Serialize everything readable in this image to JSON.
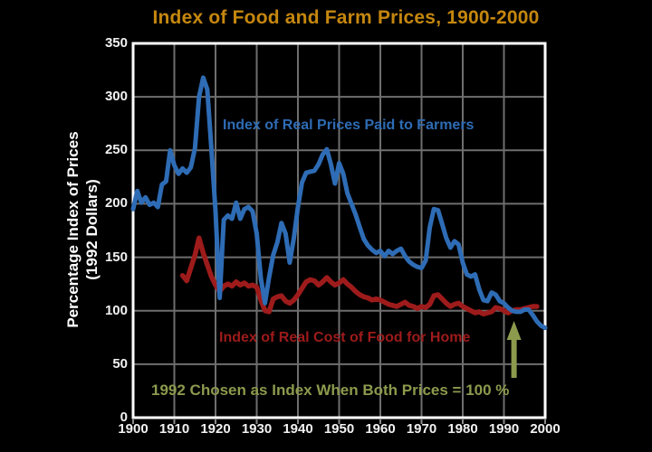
{
  "colors": {
    "background": "#000000",
    "title": "#C5870E",
    "tick_text": "#F2F2F2",
    "grid": "#6E6E6E",
    "frame": "#FFFFFF",
    "farm_series": "#2E6CB5",
    "food_series": "#9E1B1B",
    "annotation_green": "#8C9A4D"
  },
  "chart_data": {
    "type": "line",
    "title": "Index of Food and Farm Prices, 1900-2000",
    "grid": true,
    "x_axis": {
      "range": [
        1900,
        2000
      ],
      "ticks": [
        1900,
        1910,
        1920,
        1930,
        1940,
        1950,
        1960,
        1970,
        1980,
        1990,
        2000
      ]
    },
    "y_axis": {
      "range": [
        0,
        350
      ],
      "ticks": [
        0,
        50,
        100,
        150,
        200,
        250,
        300,
        350
      ],
      "title_line1": "Percentage Index of Prices",
      "title_line2": "(1992 Dollars)"
    },
    "series": [
      {
        "name": "Index of Real Prices Paid to Farmers",
        "color": "#2E6CB5",
        "points": [
          [
            1900,
            195
          ],
          [
            1901,
            212
          ],
          [
            1902,
            201
          ],
          [
            1903,
            206
          ],
          [
            1904,
            199
          ],
          [
            1905,
            201
          ],
          [
            1906,
            197
          ],
          [
            1907,
            218
          ],
          [
            1908,
            221
          ],
          [
            1909,
            250
          ],
          [
            1910,
            236
          ],
          [
            1911,
            228
          ],
          [
            1912,
            233
          ],
          [
            1913,
            229
          ],
          [
            1914,
            234
          ],
          [
            1915,
            252
          ],
          [
            1916,
            300
          ],
          [
            1917,
            318
          ],
          [
            1918,
            307
          ],
          [
            1919,
            252
          ],
          [
            1920,
            193
          ],
          [
            1921,
            112
          ],
          [
            1922,
            185
          ],
          [
            1923,
            189
          ],
          [
            1924,
            186
          ],
          [
            1925,
            201
          ],
          [
            1926,
            186
          ],
          [
            1927,
            195
          ],
          [
            1928,
            197
          ],
          [
            1929,
            193
          ],
          [
            1930,
            172
          ],
          [
            1931,
            130
          ],
          [
            1932,
            107
          ],
          [
            1933,
            131
          ],
          [
            1934,
            152
          ],
          [
            1935,
            164
          ],
          [
            1936,
            182
          ],
          [
            1937,
            172
          ],
          [
            1938,
            145
          ],
          [
            1939,
            168
          ],
          [
            1940,
            197
          ],
          [
            1941,
            220
          ],
          [
            1942,
            229
          ],
          [
            1943,
            230
          ],
          [
            1944,
            231
          ],
          [
            1945,
            237
          ],
          [
            1946,
            246
          ],
          [
            1947,
            251
          ],
          [
            1948,
            237
          ],
          [
            1949,
            219
          ],
          [
            1950,
            238
          ],
          [
            1951,
            228
          ],
          [
            1952,
            210
          ],
          [
            1953,
            200
          ],
          [
            1954,
            190
          ],
          [
            1955,
            178
          ],
          [
            1956,
            167
          ],
          [
            1957,
            161
          ],
          [
            1958,
            157
          ],
          [
            1959,
            154
          ],
          [
            1960,
            156
          ],
          [
            1961,
            151
          ],
          [
            1962,
            156
          ],
          [
            1963,
            153
          ],
          [
            1964,
            156
          ],
          [
            1965,
            158
          ],
          [
            1966,
            151
          ],
          [
            1967,
            146
          ],
          [
            1968,
            143
          ],
          [
            1969,
            141
          ],
          [
            1970,
            140
          ],
          [
            1971,
            147
          ],
          [
            1972,
            178
          ],
          [
            1973,
            195
          ],
          [
            1974,
            194
          ],
          [
            1975,
            181
          ],
          [
            1976,
            168
          ],
          [
            1977,
            159
          ],
          [
            1978,
            165
          ],
          [
            1979,
            162
          ],
          [
            1980,
            145
          ],
          [
            1981,
            134
          ],
          [
            1982,
            132
          ],
          [
            1983,
            134
          ],
          [
            1984,
            120
          ],
          [
            1985,
            110
          ],
          [
            1986,
            109
          ],
          [
            1987,
            117
          ],
          [
            1988,
            115
          ],
          [
            1989,
            109
          ],
          [
            1990,
            107
          ],
          [
            1991,
            103
          ],
          [
            1992,
            100
          ],
          [
            1993,
            99
          ],
          [
            1994,
            99
          ],
          [
            1995,
            101
          ],
          [
            1996,
            101
          ],
          [
            1997,
            96
          ],
          [
            1998,
            90
          ],
          [
            1999,
            86
          ],
          [
            2000,
            84
          ]
        ]
      },
      {
        "name": "Index of Real Cost of Food for Home",
        "color": "#9E1B1B",
        "points": [
          [
            1912,
            133
          ],
          [
            1913,
            128
          ],
          [
            1914,
            140
          ],
          [
            1915,
            152
          ],
          [
            1916,
            168
          ],
          [
            1917,
            154
          ],
          [
            1918,
            143
          ],
          [
            1919,
            132
          ],
          [
            1920,
            124
          ],
          [
            1921,
            118
          ],
          [
            1922,
            123
          ],
          [
            1923,
            125
          ],
          [
            1924,
            123
          ],
          [
            1925,
            127
          ],
          [
            1926,
            124
          ],
          [
            1927,
            126
          ],
          [
            1928,
            123
          ],
          [
            1929,
            124
          ],
          [
            1930,
            122
          ],
          [
            1931,
            110
          ],
          [
            1932,
            100
          ],
          [
            1933,
            99
          ],
          [
            1934,
            111
          ],
          [
            1935,
            113
          ],
          [
            1936,
            114
          ],
          [
            1937,
            109
          ],
          [
            1938,
            107
          ],
          [
            1939,
            110
          ],
          [
            1940,
            115
          ],
          [
            1941,
            121
          ],
          [
            1942,
            127
          ],
          [
            1943,
            129
          ],
          [
            1944,
            128
          ],
          [
            1945,
            124
          ],
          [
            1946,
            127
          ],
          [
            1947,
            131
          ],
          [
            1948,
            127
          ],
          [
            1949,
            124
          ],
          [
            1950,
            126
          ],
          [
            1951,
            129
          ],
          [
            1952,
            125
          ],
          [
            1953,
            122
          ],
          [
            1954,
            118
          ],
          [
            1955,
            115
          ],
          [
            1956,
            113
          ],
          [
            1957,
            112
          ],
          [
            1958,
            110
          ],
          [
            1959,
            111
          ],
          [
            1960,
            110
          ],
          [
            1961,
            108
          ],
          [
            1962,
            106
          ],
          [
            1963,
            105
          ],
          [
            1964,
            104
          ],
          [
            1965,
            106
          ],
          [
            1966,
            108
          ],
          [
            1967,
            105
          ],
          [
            1968,
            104
          ],
          [
            1969,
            102
          ],
          [
            1970,
            104
          ],
          [
            1971,
            103
          ],
          [
            1972,
            106
          ],
          [
            1973,
            114
          ],
          [
            1974,
            115
          ],
          [
            1975,
            111
          ],
          [
            1976,
            107
          ],
          [
            1977,
            104
          ],
          [
            1978,
            106
          ],
          [
            1979,
            107
          ],
          [
            1980,
            104
          ],
          [
            1981,
            102
          ],
          [
            1982,
            100
          ],
          [
            1983,
            98
          ],
          [
            1984,
            99
          ],
          [
            1985,
            97
          ],
          [
            1986,
            98
          ],
          [
            1987,
            99
          ],
          [
            1988,
            103
          ],
          [
            1989,
            102
          ],
          [
            1990,
            100
          ],
          [
            1991,
            98
          ],
          [
            1992,
            100
          ],
          [
            1993,
            101
          ],
          [
            1994,
            101
          ],
          [
            1995,
            102
          ],
          [
            1996,
            103
          ],
          [
            1997,
            104
          ],
          [
            1998,
            104
          ]
        ]
      }
    ],
    "annotation": {
      "text": "1992 Chosen as Index When Both Prices = 100 %",
      "color": "#8C9A4D",
      "arrow_year": 1992
    }
  }
}
